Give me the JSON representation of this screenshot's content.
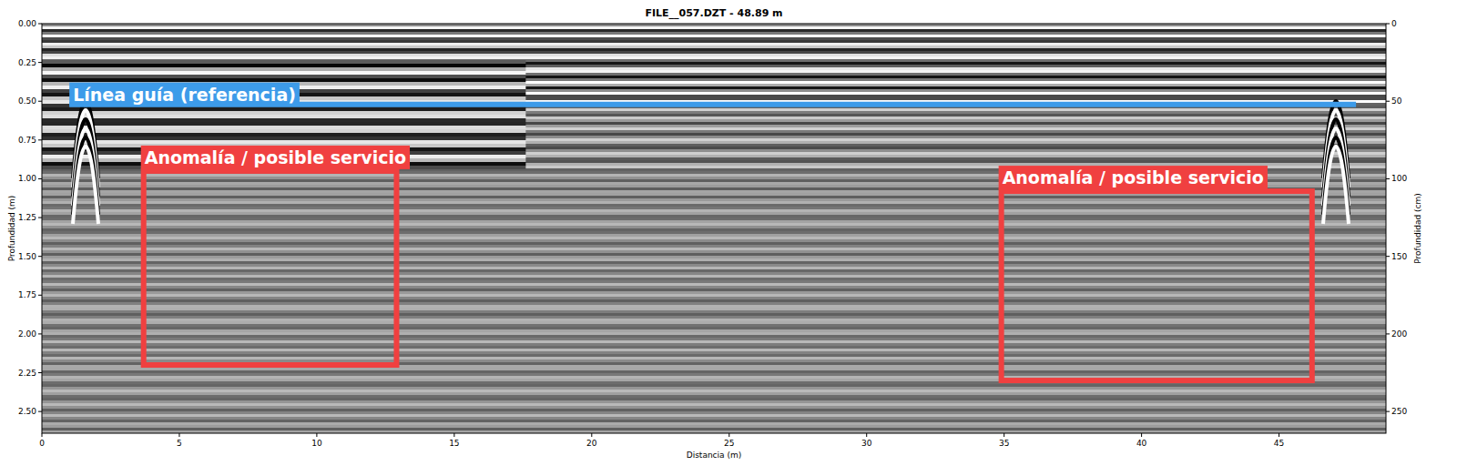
{
  "chart_data": {
    "type": "radargram",
    "title": "FILE__057.DZT - 48.89 m",
    "x_label": "Distancia (m)",
    "y_label": "Profundidad (m)",
    "y2_label": "Profundidad (cm)",
    "xlim": [
      0,
      48.89
    ],
    "xticks": [
      0,
      5,
      10,
      15,
      20,
      25,
      30,
      35,
      40,
      45
    ],
    "ylim": [
      0,
      2.64
    ],
    "yticks": [
      {
        "value": 0,
        "label": "0.00"
      },
      {
        "value": 0.25,
        "label": "0.25"
      },
      {
        "value": 0.5,
        "label": "0.50"
      },
      {
        "value": 0.75,
        "label": "0.75"
      },
      {
        "value": 1,
        "label": "1.00"
      },
      {
        "value": 1.25,
        "label": "1.25"
      },
      {
        "value": 1.5,
        "label": "1.50"
      },
      {
        "value": 1.75,
        "label": "1.75"
      },
      {
        "value": 2,
        "label": "2.00"
      },
      {
        "value": 2.25,
        "label": "2.25"
      },
      {
        "value": 2.5,
        "label": "2.50"
      }
    ],
    "y2lim": [
      0,
      264
    ],
    "y2ticks": [
      0,
      50,
      100,
      150,
      200,
      250
    ],
    "annotations": [
      {
        "type": "line",
        "text": "Línea guía (referencia)",
        "x": [
          1,
          47.8
        ],
        "y": [
          0.52,
          0.52
        ],
        "color": "#3d9be9"
      },
      {
        "type": "box",
        "text": "Anomalía / posible servicio",
        "x": [
          3.7,
          12.9
        ],
        "y": [
          0.95,
          2.2
        ],
        "color": "#f04040"
      },
      {
        "type": "box",
        "text": "Anomalía / posible servicio",
        "x": [
          34.9,
          46.2
        ],
        "y": [
          1.08,
          2.3
        ],
        "color": "#f04040"
      }
    ]
  }
}
